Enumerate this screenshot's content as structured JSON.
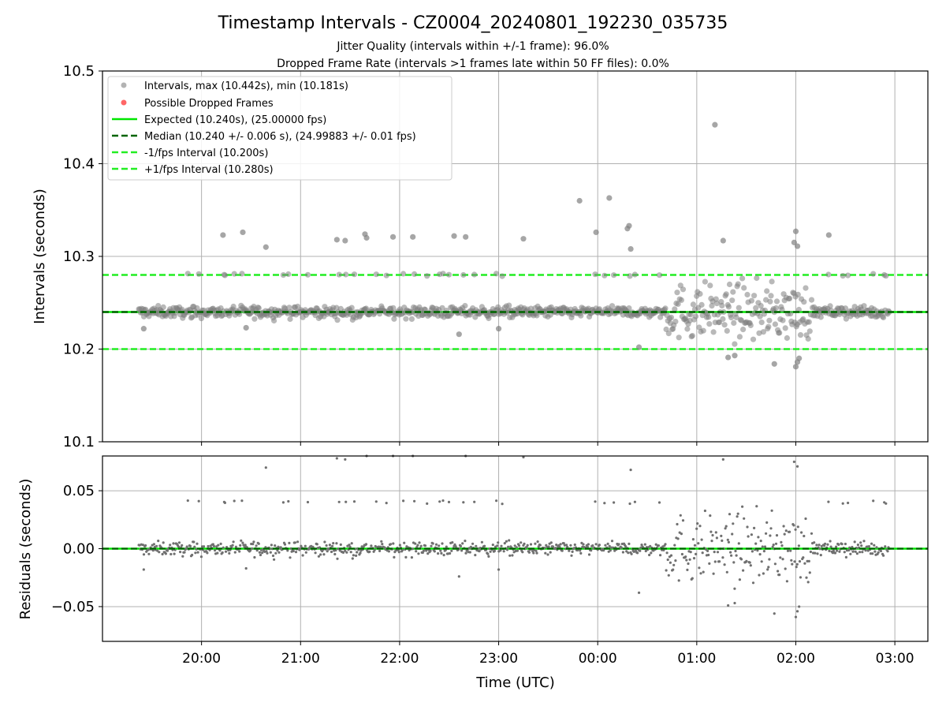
{
  "figure": {
    "title": "Timestamp Intervals - CZ0004_20240801_192230_035735",
    "subtitle_1": "Jitter Quality (intervals within +/-1 frame): 96.0%",
    "subtitle_2": "Dropped Frame Rate (intervals >1 frames late within 50 FF files): 0.0%"
  },
  "colors": {
    "points": "#808080",
    "dropped": "#ff6666",
    "expected": "#00e600",
    "median": "#006400",
    "fps_band": "#22ee22",
    "grid": "#b0b0b0"
  },
  "chart_data": [
    {
      "type": "scatter",
      "ylabel": "Intervals (seconds)",
      "ylim": [
        10.1,
        10.5
      ],
      "yticks": [
        "10.1",
        "10.2",
        "10.3",
        "10.4",
        "10.5"
      ],
      "grid": true,
      "legend_position": "top-left",
      "legend": [
        "Intervals, max (10.442s), min (10.181s)",
        "Possible Dropped Frames",
        "Expected (10.240s), (25.00000 fps)",
        "Median (10.240 +/- 0.006 s), (24.99883 +/- 0.01 fps)",
        "-1/fps Interval (10.200s)",
        "+1/fps Interval (10.280s)"
      ],
      "reference_lines": {
        "expected": 10.24,
        "median": 10.24,
        "minus_one_fps": 10.2,
        "plus_one_fps": 10.28
      },
      "x_start": "19:22:30",
      "x_end": "02:57:30",
      "x_range": [
        "19:00",
        "03:20"
      ],
      "baseline": 10.24,
      "outliers": [
        [
          "20:13",
          10.323
        ],
        [
          "20:25",
          10.326
        ],
        [
          "20:39",
          10.31
        ],
        [
          "21:22",
          10.318
        ],
        [
          "21:27",
          10.317
        ],
        [
          "21:39",
          10.324
        ],
        [
          "21:40",
          10.32
        ],
        [
          "21:56",
          10.321
        ],
        [
          "22:08",
          10.321
        ],
        [
          "22:33",
          10.322
        ],
        [
          "22:40",
          10.321
        ],
        [
          "23:15",
          10.319
        ],
        [
          "23:49",
          10.36
        ],
        [
          "23:59",
          10.326
        ],
        [
          "00:07",
          10.363
        ],
        [
          "00:18",
          10.33
        ],
        [
          "00:19",
          10.333
        ],
        [
          "00:20",
          10.308
        ],
        [
          "01:11",
          10.442
        ],
        [
          "01:16",
          10.317
        ],
        [
          "01:59",
          10.315
        ],
        [
          "02:00",
          10.327
        ],
        [
          "02:01",
          10.311
        ],
        [
          "02:20",
          10.323
        ],
        [
          "00:25",
          10.202
        ],
        [
          "01:19",
          10.191
        ],
        [
          "01:23",
          10.193
        ],
        [
          "01:47",
          10.184
        ],
        [
          "02:00",
          10.181
        ],
        [
          "02:01",
          10.186
        ],
        [
          "02:02",
          10.19
        ],
        [
          "22:36",
          10.216
        ],
        [
          "23:00",
          10.222
        ],
        [
          "19:25",
          10.222
        ],
        [
          "20:27",
          10.223
        ]
      ]
    },
    {
      "type": "scatter",
      "xlabel": "Time (UTC)",
      "ylabel": "Residuals (seconds)",
      "ylim": [
        -0.08,
        0.08
      ],
      "yticks": [
        "−0.05",
        "0.00",
        "0.05"
      ],
      "yticks_values": [
        -0.05,
        0,
        0.05
      ],
      "xticks": [
        "20:00",
        "21:00",
        "22:00",
        "23:00",
        "00:00",
        "01:00",
        "02:00",
        "03:00"
      ],
      "grid": true
    }
  ]
}
